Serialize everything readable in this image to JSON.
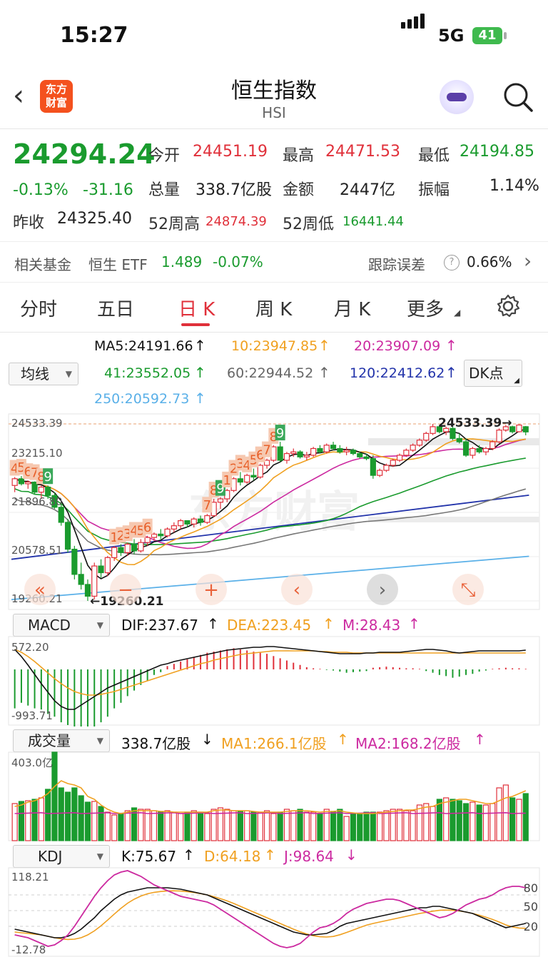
{
  "status": {
    "time": "15:27",
    "network": "5G",
    "battery": "41"
  },
  "header": {
    "logo_line1": "东方",
    "logo_line2": "财富",
    "title": "恒生指数",
    "subtitle": "HSI"
  },
  "quote": {
    "price": "24294.24",
    "change_pct": "-0.13%",
    "change": "-31.16",
    "open_label": "今开",
    "open": "24451.19",
    "high_label": "最高",
    "high": "24471.53",
    "low_label": "最低",
    "low": "24194.85",
    "volume_label": "总量",
    "volume": "338.7亿股",
    "amount_label": "金额",
    "amount": "2447亿",
    "amplitude_label": "振幅",
    "amplitude": "1.14%",
    "prev_close_label": "昨收",
    "prev_close": "24325.40",
    "high52_label": "52周高",
    "high52": "24874.39",
    "low52_label": "52周低",
    "low52": "16441.44"
  },
  "fund": {
    "label": "相关基金",
    "name": "恒生 ETF",
    "price": "1.489",
    "change": "-0.07%",
    "tracking_label": "跟踪误差",
    "help": "?",
    "tracking_value": "0.66%"
  },
  "tabs": [
    "分时",
    "五日",
    "日 K",
    "周 K",
    "月 K",
    "更多"
  ],
  "ma": {
    "selector": "均线",
    "ma5": "MA5:24191.66",
    "ma10": "10:23947.85",
    "ma20": "20:23907.09",
    "ma41": "41:23552.05",
    "ma60": "60:22944.52",
    "ma120": "120:22412.62",
    "ma250": "250:20592.73",
    "dk": "DK点",
    "colors": {
      "ma5": "#111111",
      "ma10": "#f0a020",
      "ma20": "#cc2aa0",
      "ma41": "#1a9b2e",
      "ma60": "#777777",
      "ma120": "#2233aa",
      "ma250": "#5ab0e8"
    }
  },
  "kchart": {
    "y_labels": [
      "24533.39",
      "23215.10",
      "21896.80",
      "20578.51",
      "19260.21"
    ],
    "max_label": "24533.39",
    "min_label": "19260.21",
    "watermark": "东方财富",
    "seq_labels": [
      "4",
      "5",
      "6",
      "7",
      "8",
      "9",
      "1",
      "2",
      "3",
      "4",
      "5",
      "6",
      "7",
      "8",
      "9",
      "1",
      "2",
      "3",
      "4",
      "5",
      "6",
      "7",
      "8",
      "9"
    ]
  },
  "macd": {
    "selector": "MACD",
    "dif": "DIF:237.67",
    "dea": "DEA:223.45",
    "m": "M:28.43",
    "y_top": "572.20",
    "y_bottom": "-993.71"
  },
  "vol": {
    "selector": "成交量",
    "value": "338.7亿股",
    "ma1": "MA1:266.1亿股",
    "ma2": "MA2:168.2亿股",
    "y_top": "403.0亿"
  },
  "kdj": {
    "selector": "KDJ",
    "k": "K:75.67",
    "d": "D:64.18",
    "j": "J:98.64",
    "y_top": "118.21",
    "y_bottom": "-12.78",
    "levels": [
      "80",
      "50",
      "20"
    ]
  },
  "chart_data": {
    "type": "candlestick",
    "y_range": [
      19260.21,
      24533.39
    ],
    "candles": [
      [
        22700,
        22950,
        22500,
        22900
      ],
      [
        22900,
        22980,
        22700,
        22750
      ],
      [
        22750,
        22850,
        22600,
        22800
      ],
      [
        22800,
        22820,
        22450,
        22500
      ],
      [
        22500,
        22700,
        22300,
        22650
      ],
      [
        22650,
        22700,
        22300,
        22400
      ],
      [
        22400,
        22500,
        22000,
        22050
      ],
      [
        22050,
        22200,
        21500,
        21600
      ],
      [
        21600,
        21700,
        20700,
        20800
      ],
      [
        20800,
        20900,
        19900,
        20050
      ],
      [
        20050,
        20400,
        19600,
        19750
      ],
      [
        19750,
        19900,
        19260,
        19400
      ],
      [
        19400,
        20400,
        19300,
        20300
      ],
      [
        20300,
        20500,
        19950,
        20100
      ],
      [
        20100,
        20600,
        20000,
        20550
      ],
      [
        20550,
        20900,
        20450,
        20850
      ],
      [
        20850,
        20950,
        20600,
        20700
      ],
      [
        20700,
        21000,
        20600,
        20950
      ],
      [
        20950,
        21100,
        20650,
        20750
      ],
      [
        20750,
        21100,
        20700,
        21000
      ],
      [
        21000,
        21200,
        20900,
        21150
      ],
      [
        21150,
        21300,
        21050,
        21250
      ],
      [
        21250,
        21400,
        21100,
        21200
      ],
      [
        21200,
        21450,
        21150,
        21400
      ],
      [
        21400,
        21600,
        21300,
        21500
      ],
      [
        21500,
        21700,
        21400,
        21650
      ],
      [
        21650,
        21650,
        21450,
        21550
      ],
      [
        21550,
        21750,
        21450,
        21700
      ],
      [
        21700,
        21800,
        21500,
        21600
      ],
      [
        21600,
        21850,
        21550,
        21800
      ],
      [
        21800,
        22300,
        21750,
        22200
      ],
      [
        22200,
        22350,
        22000,
        22300
      ],
      [
        22300,
        22600,
        22200,
        22550
      ],
      [
        22550,
        22950,
        22500,
        22900
      ],
      [
        22900,
        23100,
        22700,
        22800
      ],
      [
        22800,
        23050,
        22750,
        23000
      ],
      [
        23000,
        23200,
        22850,
        22950
      ],
      [
        22950,
        23350,
        22900,
        23300
      ],
      [
        23300,
        23500,
        23200,
        23450
      ],
      [
        23450,
        23900,
        23400,
        23850
      ],
      [
        23850,
        24000,
        23400,
        23450
      ],
      [
        23450,
        23700,
        23350,
        23650
      ],
      [
        23650,
        23800,
        23550,
        23700
      ],
      [
        23700,
        23750,
        23500,
        23550
      ],
      [
        23550,
        23700,
        23450,
        23600
      ],
      [
        23600,
        23850,
        23550,
        23800
      ],
      [
        23800,
        23900,
        23650,
        23700
      ],
      [
        23700,
        23950,
        23650,
        23900
      ],
      [
        23900,
        24000,
        23750,
        23800
      ],
      [
        23800,
        23900,
        23650,
        23700
      ],
      [
        23700,
        23850,
        23600,
        23750
      ],
      [
        23750,
        23800,
        23600,
        23650
      ],
      [
        23650,
        23700,
        23500,
        23550
      ],
      [
        23550,
        23650,
        23450,
        23500
      ],
      [
        23500,
        23600,
        22900,
        23000
      ],
      [
        23000,
        23200,
        22950,
        23150
      ],
      [
        23150,
        23350,
        23100,
        23300
      ],
      [
        23300,
        23500,
        23250,
        23450
      ],
      [
        23450,
        23650,
        23400,
        23600
      ],
      [
        23600,
        23800,
        23550,
        23750
      ],
      [
        23750,
        23950,
        23700,
        23900
      ],
      [
        23900,
        24100,
        23850,
        24050
      ],
      [
        24050,
        24300,
        24000,
        24250
      ],
      [
        24250,
        24533,
        24200,
        24450
      ],
      [
        24450,
        24500,
        24250,
        24300
      ],
      [
        24300,
        24450,
        24200,
        24400
      ],
      [
        24400,
        24450,
        24050,
        24100
      ],
      [
        24100,
        24250,
        23950,
        24000
      ],
      [
        24000,
        24100,
        23550,
        23600
      ],
      [
        23600,
        23850,
        23500,
        23800
      ],
      [
        23800,
        23900,
        23650,
        23700
      ],
      [
        23700,
        23850,
        23600,
        23800
      ],
      [
        23800,
        24050,
        23750,
        24000
      ],
      [
        24000,
        24400,
        23950,
        24350
      ],
      [
        24350,
        24500,
        24300,
        24450
      ],
      [
        24450,
        24480,
        24250,
        24300
      ],
      [
        24300,
        24520,
        24280,
        24500
      ],
      [
        24451,
        24471,
        24194,
        24294
      ]
    ]
  }
}
